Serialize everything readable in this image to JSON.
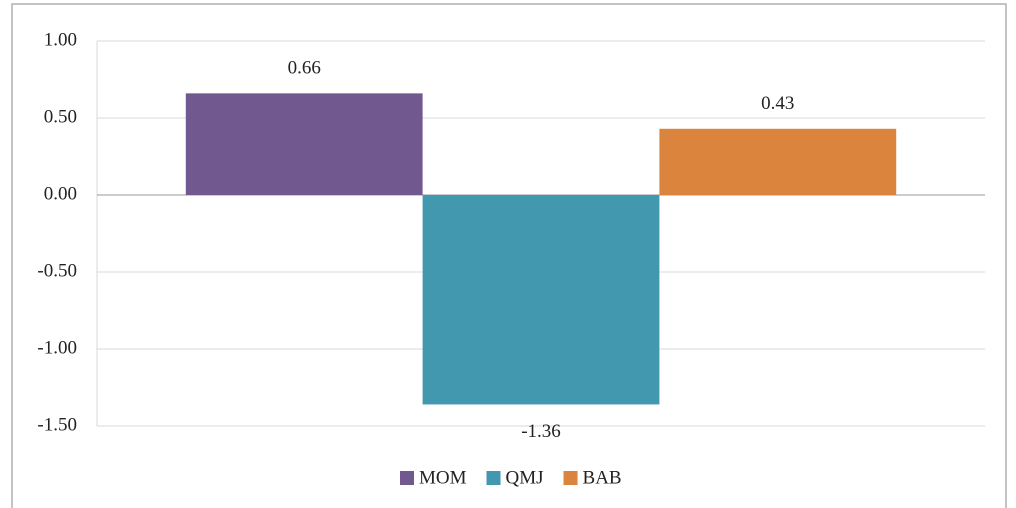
{
  "chart_data": {
    "type": "bar",
    "categories": [
      null
    ],
    "series": [
      {
        "name": "MOM",
        "color": "#71588f",
        "values": [
          0.66
        ]
      },
      {
        "name": "QMJ",
        "color": "#4198af",
        "values": [
          -1.36
        ]
      },
      {
        "name": "BAB",
        "color": "#db843d",
        "values": [
          0.43
        ]
      }
    ],
    "ylim": [
      -1.5,
      1
    ],
    "yticks": [
      {
        "value": -1.5,
        "label": "-1.50"
      },
      {
        "value": -1,
        "label": "-1.00"
      },
      {
        "value": -0.5,
        "label": "-0.50"
      },
      {
        "value": 0,
        "label": "0.00"
      },
      {
        "value": 0.5,
        "label": "0.50"
      },
      {
        "value": 1,
        "label": "1.00"
      }
    ],
    "grid": true,
    "legend": "bottom"
  }
}
